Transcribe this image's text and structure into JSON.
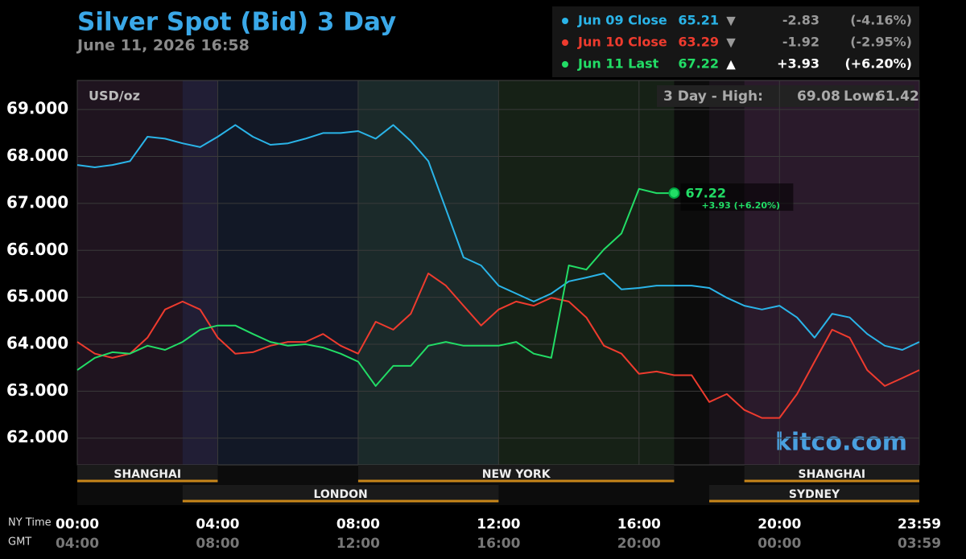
{
  "chart_data": {
    "type": "line",
    "title": "Silver Spot (Bid) 3 Day",
    "subtitle": "June 11, 2026 16:58",
    "unit_label": "USD/oz",
    "range_label": "3 Day - High:",
    "high": 69.08,
    "low_label": "Low:",
    "low": 61.42,
    "watermark": "kitco.com",
    "x_axis_label": "NY Time",
    "x2_axis_label": "GMT",
    "x": [
      0,
      0.5,
      1,
      1.5,
      2,
      2.5,
      3,
      3.5,
      4,
      4.5,
      5,
      5.5,
      6,
      6.5,
      7,
      7.5,
      8,
      8.5,
      9,
      9.5,
      10,
      10.5,
      11,
      11.5,
      12,
      12.5,
      13,
      13.5,
      14,
      14.5,
      15,
      15.5,
      16,
      16.5,
      17,
      17.5,
      18,
      18.5,
      19,
      19.5,
      20,
      20.5,
      21,
      21.5,
      22,
      22.5,
      23,
      23.5,
      23.983
    ],
    "xlim": [
      0,
      23.983
    ],
    "xticks": [
      {
        "value": 0,
        "label": "00:00"
      },
      {
        "value": 4,
        "label": "04:00"
      },
      {
        "value": 8,
        "label": "08:00"
      },
      {
        "value": 12,
        "label": "12:00"
      },
      {
        "value": 16,
        "label": "16:00"
      },
      {
        "value": 20,
        "label": "20:00"
      },
      {
        "value": 23.983,
        "label": "23:59"
      }
    ],
    "x2ticks": [
      {
        "value": 0,
        "label": "04:00"
      },
      {
        "value": 4,
        "label": "08:00"
      },
      {
        "value": 8,
        "label": "12:00"
      },
      {
        "value": 12,
        "label": "16:00"
      },
      {
        "value": 16,
        "label": "20:00"
      },
      {
        "value": 20,
        "label": "00:00"
      },
      {
        "value": 23.983,
        "label": "03:59"
      }
    ],
    "ylim": [
      61.43,
      69.62
    ],
    "yticks": [
      {
        "value": 62,
        "label": "62.000"
      },
      {
        "value": 63,
        "label": "63.000"
      },
      {
        "value": 64,
        "label": "64.000"
      },
      {
        "value": 65,
        "label": "65.000"
      },
      {
        "value": 66,
        "label": "66.000"
      },
      {
        "value": 67,
        "label": "67.000"
      },
      {
        "value": 68,
        "label": "68.000"
      },
      {
        "value": 69,
        "label": "69.000"
      }
    ],
    "grid": true,
    "series": [
      {
        "name": "Jun 09 Close",
        "color": "#2ab4e8",
        "close": 65.21,
        "direction": "▼",
        "change": -2.83,
        "change_pct": {
          "value": -4.16,
          "label": "(-4.16%)"
        },
        "values": [
          67.82,
          67.77,
          67.82,
          67.9,
          68.42,
          68.38,
          68.28,
          68.2,
          68.42,
          68.67,
          68.42,
          68.25,
          68.28,
          68.38,
          68.5,
          68.5,
          68.54,
          68.38,
          68.67,
          68.33,
          67.9,
          66.88,
          65.85,
          65.68,
          65.25,
          65.08,
          64.91,
          65.08,
          65.34,
          65.42,
          65.51,
          65.17,
          65.2,
          65.25,
          65.25,
          65.25,
          65.2,
          64.99,
          64.82,
          64.74,
          64.82,
          64.57,
          64.14,
          64.65,
          64.57,
          64.22,
          63.97,
          63.88,
          64.05
        ]
      },
      {
        "name": "Jun 10 Close",
        "color": "#ee3b2e",
        "close": 63.29,
        "direction": "▼",
        "change": -1.92,
        "change_pct": {
          "value": -2.95,
          "label": "(-2.95%)"
        },
        "values": [
          64.05,
          63.8,
          63.71,
          63.8,
          64.14,
          64.74,
          64.91,
          64.74,
          64.14,
          63.8,
          63.83,
          63.97,
          64.05,
          64.05,
          64.22,
          63.97,
          63.8,
          64.48,
          64.31,
          64.65,
          65.51,
          65.25,
          64.82,
          64.4,
          64.74,
          64.91,
          64.82,
          64.99,
          64.91,
          64.57,
          63.97,
          63.8,
          63.37,
          63.42,
          63.34,
          63.34,
          62.77,
          62.94,
          62.6,
          62.43,
          62.43,
          62.94,
          63.63,
          64.31,
          64.14,
          63.45,
          63.11,
          63.28,
          63.45
        ]
      },
      {
        "name": "Jun 11 Last",
        "color": "#22dd66",
        "close": 67.22,
        "direction": "▲",
        "change": {
          "value": 3.93,
          "label": "+3.93"
        },
        "change_pct": {
          "value": 6.2,
          "label": "(+6.20%)"
        },
        "values": [
          63.45,
          63.71,
          63.83,
          63.8,
          63.97,
          63.88,
          64.05,
          64.31,
          64.4,
          64.4,
          64.22,
          64.05,
          63.97,
          64.0,
          63.93,
          63.8,
          63.63,
          63.11,
          63.54,
          63.54,
          63.97,
          64.05,
          63.97,
          63.97,
          63.97,
          64.05,
          63.8,
          63.71,
          65.68,
          65.59,
          66.02,
          66.36,
          67.31,
          67.22,
          67.22,
          null,
          null,
          null,
          null,
          null,
          null,
          null,
          null,
          null,
          null,
          null,
          null,
          null,
          null
        ]
      }
    ],
    "annotation": {
      "value": 67.22,
      "label": "+3.93 (+6.20%)"
    },
    "sessions": [
      {
        "name": "SHANGHAI",
        "start": 0,
        "end": 4,
        "row": 1
      },
      {
        "name": "LONDON",
        "start": 3,
        "end": 12,
        "row": 2
      },
      {
        "name": "NEW YORK",
        "start": 8,
        "end": 17,
        "row": 1
      },
      {
        "name": "SYDNEY",
        "start": 18,
        "end": 23.983,
        "row": 2
      },
      {
        "name": "SHANGHAI",
        "start": 19,
        "end": 23.983,
        "row": 1
      }
    ],
    "session_color": "#c8861a"
  }
}
